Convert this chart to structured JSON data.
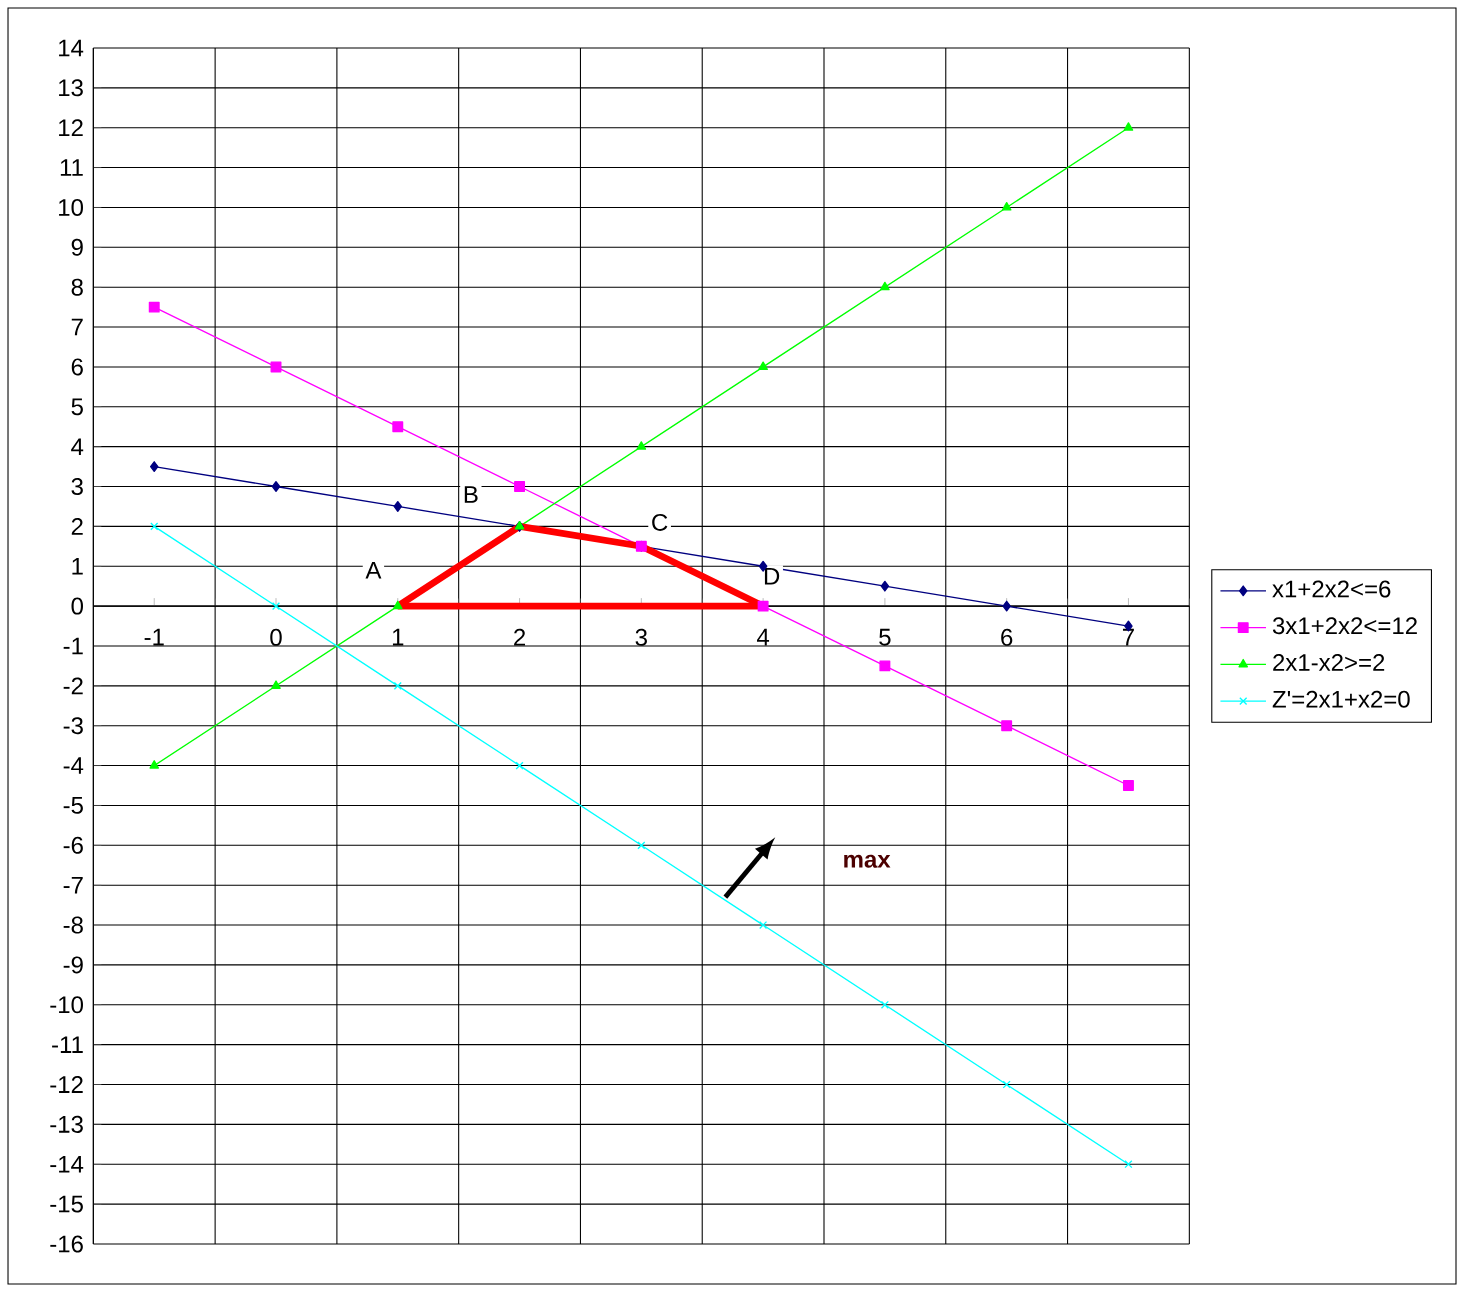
{
  "chart_data": {
    "type": "line",
    "categories": [
      "-1",
      "0",
      "1",
      "2",
      "3",
      "4",
      "5",
      "6",
      "7"
    ],
    "series": [
      {
        "name": "x1+2x2<=6",
        "color": "#000080",
        "marker": "diamond",
        "values": [
          3.5,
          3,
          2.5,
          2,
          1.5,
          1,
          0.5,
          0,
          -0.5
        ]
      },
      {
        "name": "3x1+2x2<=12",
        "color": "#ff00ff",
        "marker": "square",
        "values": [
          7.5,
          6,
          4.5,
          3,
          1.5,
          0,
          -1.5,
          -3,
          -4.5
        ]
      },
      {
        "name": "2x1-x2>=2",
        "color": "#00ff00",
        "marker": "triangle",
        "values": [
          -4,
          -2,
          0,
          2,
          4,
          6,
          8,
          10,
          12
        ]
      },
      {
        "name": "Z'=2x1+x2=0",
        "color": "#00ffff",
        "marker": "cross",
        "values": [
          2,
          0,
          -2,
          -4,
          -6,
          -8,
          -10,
          -12,
          -14
        ]
      },
      {
        "color": "#ff0000",
        "marker": "none",
        "x": [
          "1",
          "2",
          "3",
          "4"
        ],
        "values": [
          0,
          2,
          1.5,
          0
        ]
      },
      {
        "color": "#ff0000",
        "marker": "none",
        "x": [
          "1",
          "4"
        ],
        "values": [
          0,
          0
        ]
      }
    ],
    "ylim": [
      -16,
      14
    ],
    "yticks": [
      -16,
      -15,
      -14,
      -13,
      -12,
      -11,
      -10,
      -9,
      -8,
      -7,
      -6,
      -5,
      -4,
      -3,
      -2,
      -1,
      0,
      1,
      2,
      3,
      4,
      5,
      6,
      7,
      8,
      9,
      10,
      11,
      12,
      13,
      14
    ],
    "grid": true,
    "legend": "right",
    "annotations": [
      {
        "text": "A",
        "x": "1",
        "y": 0
      },
      {
        "text": "B",
        "x": "2",
        "y": 2
      },
      {
        "text": "C",
        "x": "3",
        "y": 1.5
      },
      {
        "text": "D",
        "x": "4",
        "y": 0
      },
      "max"
    ]
  }
}
